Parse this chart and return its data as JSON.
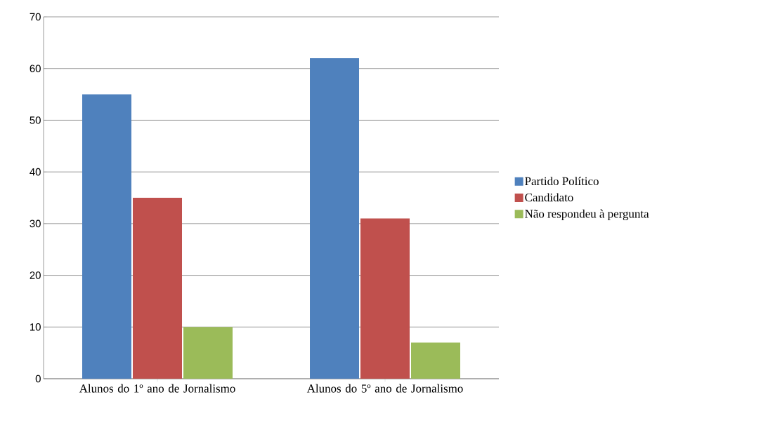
{
  "chart_data": {
    "type": "bar",
    "categories": [
      "Alunos do 1º ano de Jornalismo",
      "Alunos do 5º ano de Jornalismo"
    ],
    "series": [
      {
        "name": "Partido Político",
        "color": "#4f81bd",
        "values": [
          55,
          62
        ]
      },
      {
        "name": "Candidato",
        "color": "#c0504d",
        "values": [
          35,
          31
        ]
      },
      {
        "name": "Não respondeu à pergunta",
        "color": "#9bbb59",
        "values": [
          10,
          7
        ]
      }
    ],
    "ylim": [
      0,
      70
    ],
    "yticks": [
      0,
      10,
      20,
      30,
      40,
      50,
      60,
      70
    ],
    "grid": "y",
    "legend": "right"
  }
}
